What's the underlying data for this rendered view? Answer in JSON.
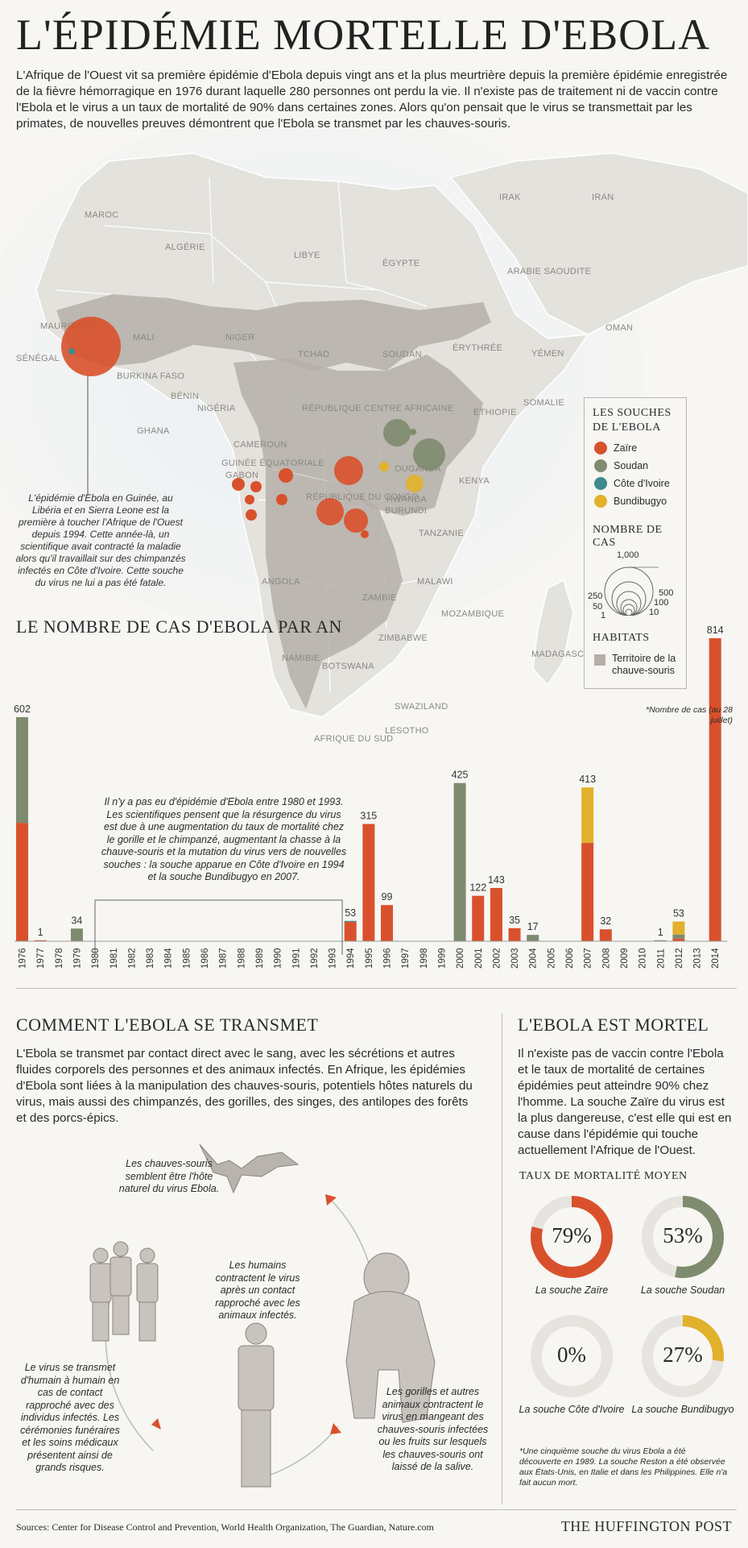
{
  "title": "L'ÉPIDÉMIE MORTELLE D'EBOLA",
  "intro": "L'Afrique de l'Ouest vit sa première épidémie d'Ebola depuis vingt ans et la plus meurtrière depuis la première épidémie enregistrée de la fièvre hémorragique en 1976 durant laquelle 280 personnes ont perdu la vie. Il n'existe pas de traitement ni de vaccin contre l'Ebola et le virus a un taux de mortalité de 90% dans certaines zones. Alors qu'on pensait que le virus se transmettait par les primates, de nouvelles preuves démontrent que l'Ebola se transmet par les chauves-souris.",
  "colors": {
    "zaire": "#d9512c",
    "soudan": "#7e8b6f",
    "cote_ivoire": "#3f8a8c",
    "bundibugyo": "#e2b12b",
    "habitat": "#b5afa8",
    "land": "#e4e2dd"
  },
  "map": {
    "labels": [
      "MAROC",
      "ALGÉRIE",
      "LIBYE",
      "ÉGYPTE",
      "IRAK",
      "IRAN",
      "ARABIE SAOUDITE",
      "MAURITANIE",
      "MALI",
      "NIGER",
      "TCHAD",
      "SOUDAN",
      "YÉMEN",
      "OMAN",
      "SÉNÉGAL",
      "BURKINA FASO",
      "BÉNIN",
      "NIGÉRIA",
      "RÉPUBLIQUE CENTRE AFRICAINE",
      "ÉRYTHRÉE",
      "ÉTHIOPIE",
      "SOMALIE",
      "GHANA",
      "CAMEROUN",
      "GABON",
      "OUGANDA",
      "KENYA",
      "RÉPUBLIQUE DU CONGO",
      "RWANDA",
      "BURUNDI",
      "TANZANIE",
      "ANGOLA",
      "ZAMBIE",
      "MALAWI",
      "MOZAMBIQUE",
      "NAMIBIE",
      "ZIMBABWE",
      "BOTSWANA",
      "MADAGASCAR",
      "SWAZILAND",
      "LESOTHO",
      "AFRIQUE DU SUD",
      "GUINÉE ÉQUATORIALE"
    ],
    "guinea_note": "L'épidémie d'Ebola en Guinée, au Libéria et en Sierra Leone est la première à toucher l'Afrique de l'Ouest depuis 1994. Cette année-là, un scientifique avait contracté la maladie alors qu'il travaillait sur des chimpanzés infectés en Côte d'Ivoire. Cette souche du virus ne lui a pas été fatale."
  },
  "legend": {
    "strains_title": "LES SOUCHES DE L'EBOLA",
    "strains": [
      "Zaïre",
      "Soudan",
      "Côte d'Ivoire",
      "Bundibugyo"
    ],
    "cases_title": "NOMBRE DE CAS",
    "size_labels": [
      "1,000",
      "500",
      "250",
      "100",
      "50",
      "10",
      "1"
    ],
    "habitat_title": "HABITATS",
    "habitat_label": "Territoire de la chauve-souris"
  },
  "chart_title": "LE NOMBRE DE CAS D'EBOLA PAR AN",
  "chart_data": {
    "type": "bar",
    "stacked": true,
    "categories": [
      "1976",
      "1977",
      "1978",
      "1979",
      "1980",
      "1981",
      "1982",
      "1983",
      "1984",
      "1985",
      "1986",
      "1987",
      "1988",
      "1989",
      "1990",
      "1991",
      "1992",
      "1993",
      "1994",
      "1995",
      "1996",
      "1997",
      "1998",
      "1999",
      "2000",
      "2001",
      "2002",
      "2003",
      "2004",
      "2005",
      "2006",
      "2007",
      "2008",
      "2009",
      "2010",
      "2011",
      "2012",
      "2013",
      "2014"
    ],
    "series": [
      {
        "name": "Zaïre",
        "color": "#d9512c",
        "values": [
          318,
          1,
          0,
          0,
          0,
          0,
          0,
          0,
          0,
          0,
          0,
          0,
          0,
          0,
          0,
          0,
          0,
          0,
          52,
          315,
          97,
          0,
          0,
          0,
          0,
          122,
          143,
          35,
          0,
          0,
          0,
          264,
          32,
          0,
          0,
          0,
          7,
          0,
          814
        ]
      },
      {
        "name": "Soudan",
        "color": "#7e8b6f",
        "values": [
          284,
          0,
          0,
          34,
          0,
          0,
          0,
          0,
          0,
          0,
          0,
          0,
          0,
          0,
          0,
          0,
          0,
          0,
          0,
          0,
          0,
          0,
          0,
          0,
          425,
          0,
          0,
          0,
          17,
          0,
          0,
          0,
          0,
          0,
          0,
          1,
          11,
          0,
          0
        ]
      },
      {
        "name": "Côte d'Ivoire",
        "color": "#3f8a8c",
        "values": [
          0,
          0,
          0,
          0,
          0,
          0,
          0,
          0,
          0,
          0,
          0,
          0,
          0,
          0,
          0,
          0,
          0,
          0,
          1,
          0,
          0,
          0,
          0,
          0,
          0,
          0,
          0,
          0,
          0,
          0,
          0,
          0,
          0,
          0,
          0,
          0,
          0,
          0,
          0
        ]
      },
      {
        "name": "Bundibugyo",
        "color": "#e2b12b",
        "values": [
          0,
          0,
          0,
          0,
          0,
          0,
          0,
          0,
          0,
          0,
          0,
          0,
          0,
          0,
          0,
          0,
          0,
          0,
          0,
          0,
          0,
          0,
          0,
          0,
          0,
          0,
          0,
          0,
          0,
          0,
          0,
          149,
          0,
          0,
          0,
          0,
          35,
          0,
          0
        ]
      }
    ],
    "data_labels": {
      "1976": "602",
      "1977": "1",
      "1979": "34",
      "1994": "53",
      "1995": "315",
      "1996": "99",
      "2000": "425",
      "2001": "122",
      "2002": "143",
      "2003": "35",
      "2004": "17",
      "2007": "413",
      "2008": "32",
      "2011": "1",
      "2012": "53",
      "2014": "814"
    },
    "ylim": [
      0,
      814
    ]
  },
  "gap_note": "Il n'y a pas eu d'épidémie d'Ebola entre 1980 et 1993. Les scientifiques pensent que la résurgence du virus est due à une augmentation du taux de mortalité chez le gorille et le chimpanzé, augmentant la chasse à la chauve-souris et la mutation du virus vers de nouvelles souches : la souche apparue en Côte d'Ivoire en 1994 et la souche Bundibugyo en 2007.",
  "footnote_2014": "*Nombre de cas (au 28 juillet)",
  "transmission": {
    "title": "COMMENT L'EBOLA SE TRANSMET",
    "text": "L'Ebola se transmet par contact direct avec le sang, avec les sécrétions et autres fluides corporels des personnes et des animaux infectés. En Afrique, les épidémies d'Ebola sont liées à la manipulation des chauves-souris, potentiels hôtes naturels du virus, mais aussi des chimpanzés, des gorilles, des singes, des antilopes des forêts et des porcs-épics.",
    "bats": "Les chauves-souris semblent être l'hôte naturel du virus Ebola.",
    "humans": "Les humains contractent le virus après un contact rapproché avec les animaux infectés.",
    "human_to_human": "Le virus se transmet d'humain à humain en cas de contact rapproché avec des individus infectés. Les cérémonies funéraires et les soins médicaux présentent ainsi de grands risques.",
    "gorillas": "Les gorilles et autres animaux contractent le virus en mangeant des chauves-souris infectées ou les fruits sur lesquels les chauves-souris ont laissé de la salive."
  },
  "mortality": {
    "title": "L'EBOLA EST MORTEL",
    "text": "Il n'existe pas de vaccin contre l'Ebola et le taux de mortalité de certaines épidémies peut atteindre 90% chez l'homme. La souche Zaïre du virus est la plus dangereuse, c'est elle qui est en cause dans l'épidémie qui touche actuellement l'Afrique de l'Ouest.",
    "rates_title": "TAUX DE MORTALITÉ MOYEN",
    "rates": [
      {
        "pct": "79%",
        "value": 79,
        "label": "La souche Zaïre",
        "color": "#d9512c"
      },
      {
        "pct": "53%",
        "value": 53,
        "label": "La souche Soudan",
        "color": "#7e8b6f"
      },
      {
        "pct": "0%",
        "value": 0,
        "label": "La souche Côte d'Ivoire",
        "color": "#3f8a8c"
      },
      {
        "pct": "27%",
        "value": 27,
        "label": "La souche Bundibugyo",
        "color": "#e2b12b"
      }
    ],
    "note": "*Une cinquième souche du virus Ebola a été découverte en 1989. La souche Reston a été observée aux États-Unis, en Italie et dans les Philippines. Elle n'a fait aucun mort."
  },
  "sources": "Sources: Center for Disease Control and Prevention, World Health Organization, The Guardian, Nature.com",
  "brand": "THE HUFFINGTON POST"
}
